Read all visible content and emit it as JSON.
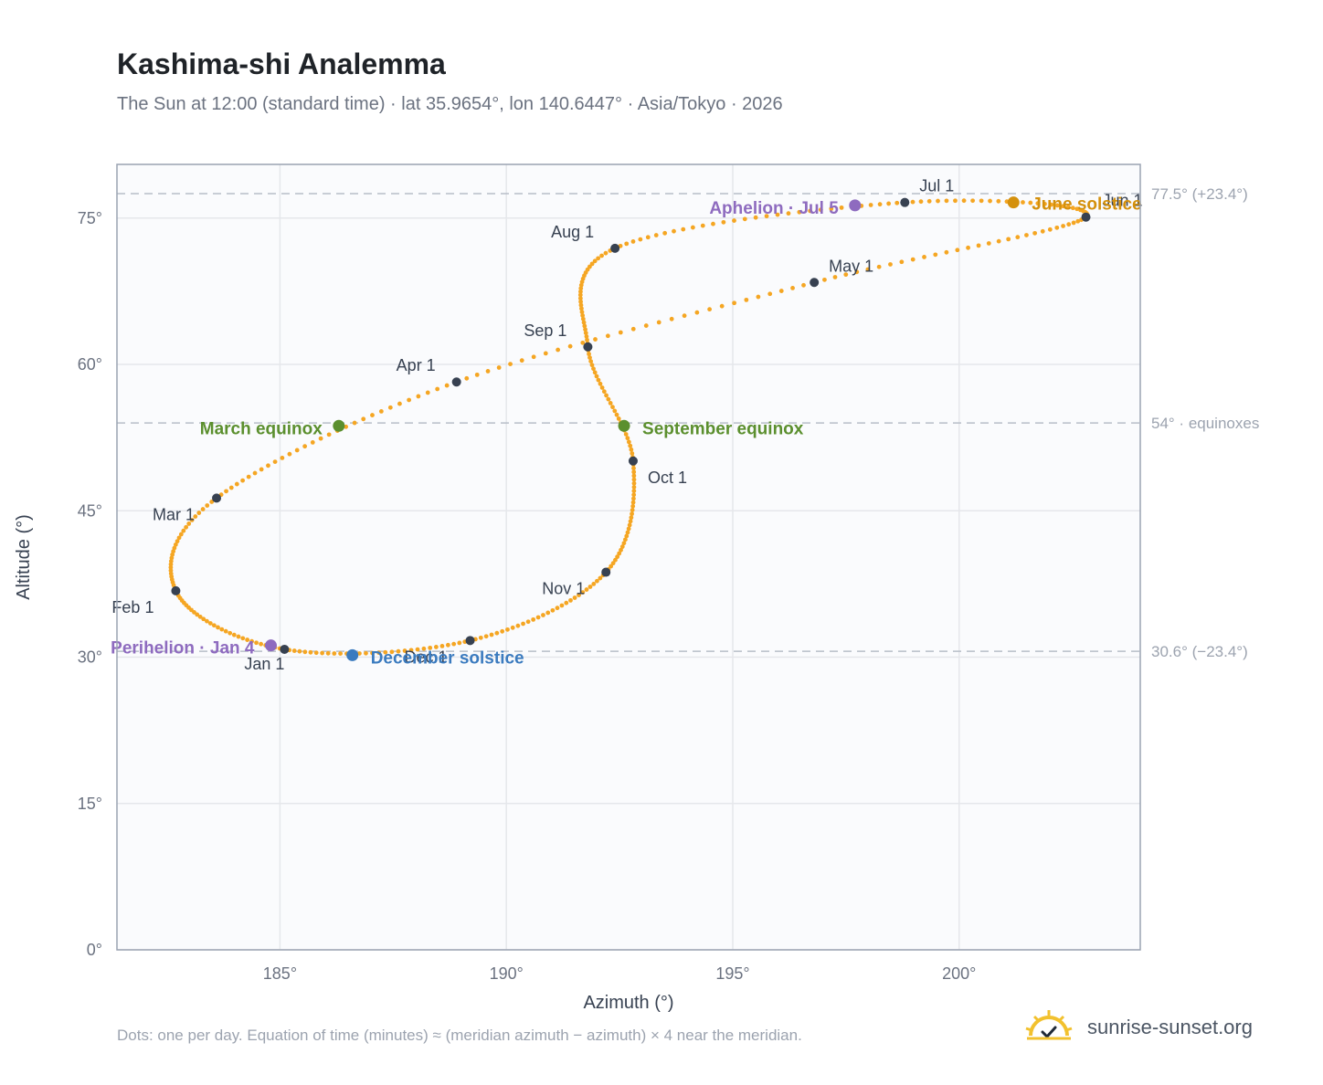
{
  "header": {
    "title": "Kashima-shi Analemma",
    "subtitle": "The Sun at 12:00 (standard time) · lat 35.9654°, lon 140.6447° · Asia/Tokyo · 2026"
  },
  "footer": {
    "note": "Dots: one per day. Equation of time (minutes) ≈ (meridian azimuth − azimuth) × 4 near the meridian.",
    "brand": "sunrise-sunset.org"
  },
  "colors": {
    "path": "#f5a623",
    "month_dot": "#374151",
    "equinox": "#5b8f2e",
    "june_solstice": "#d4900c",
    "december_solstice": "#3b7bbf",
    "apsis": "#8e6bbf",
    "grid": "#e5e7eb",
    "plot_bg": "#fafbfd",
    "frame": "#9aa3b2",
    "ref_line": "#b8bec8"
  },
  "chart_data": {
    "type": "scatter",
    "title": "Kashima-shi Analemma",
    "xlabel": "Azimuth (°)",
    "ylabel": "Altitude (°)",
    "xlim": [
      181.4,
      204.0
    ],
    "ylim": [
      0,
      80.5
    ],
    "x_ticks": [
      185,
      190,
      195,
      200
    ],
    "x_tick_labels": [
      "185°",
      "190°",
      "195°",
      "200°"
    ],
    "y_ticks": [
      0,
      15,
      30,
      45,
      60,
      75
    ],
    "y_tick_labels": [
      "0°",
      "15°",
      "30°",
      "45°",
      "60°",
      "75°"
    ],
    "grid": true,
    "reference_lines": [
      {
        "y": 77.5,
        "label": "77.5° (+23.4°)"
      },
      {
        "y": 54.0,
        "label": "54° · equinoxes"
      },
      {
        "y": 30.6,
        "label": "30.6° (−23.4°)"
      }
    ],
    "months": [
      {
        "label": "Jan 1",
        "day": 1,
        "az": 185.1,
        "alt": 30.8
      },
      {
        "label": "Feb 1",
        "day": 32,
        "az": 182.7,
        "alt": 36.8
      },
      {
        "label": "Mar 1",
        "day": 60,
        "az": 183.6,
        "alt": 46.3
      },
      {
        "label": "Apr 1",
        "day": 91,
        "az": 188.9,
        "alt": 58.2
      },
      {
        "label": "May 1",
        "day": 121,
        "az": 196.8,
        "alt": 68.4
      },
      {
        "label": "Jun 1",
        "day": 152,
        "az": 202.8,
        "alt": 75.1
      },
      {
        "label": "Jul 1",
        "day": 182,
        "az": 198.8,
        "alt": 76.6
      },
      {
        "label": "Aug 1",
        "day": 213,
        "az": 192.4,
        "alt": 71.9
      },
      {
        "label": "Sep 1",
        "day": 244,
        "az": 191.8,
        "alt": 61.8
      },
      {
        "label": "Oct 1",
        "day": 274,
        "az": 192.8,
        "alt": 50.1
      },
      {
        "label": "Nov 1",
        "day": 305,
        "az": 192.2,
        "alt": 38.7
      },
      {
        "label": "Dec 1",
        "day": 335,
        "az": 189.2,
        "alt": 31.7
      }
    ],
    "events": [
      {
        "label": "March equinox",
        "day": 79,
        "az": 186.3,
        "alt": 53.7,
        "color": "#5b8f2e"
      },
      {
        "label": "June solstice",
        "day": 172,
        "az": 201.2,
        "alt": 76.6,
        "color": "#d4900c"
      },
      {
        "label": "September equinox",
        "day": 265,
        "az": 192.6,
        "alt": 53.7,
        "color": "#5b8f2e"
      },
      {
        "label": "December solstice",
        "day": 355,
        "az": 186.6,
        "alt": 30.2,
        "color": "#3b7bbf"
      },
      {
        "label": "Perihelion · Jan 4",
        "day": 4,
        "az": 184.8,
        "alt": 31.2,
        "color": "#8e6bbf"
      },
      {
        "label": "Aphelion · Jul 5",
        "day": 186,
        "az": 197.7,
        "alt": 76.3,
        "color": "#8e6bbf"
      }
    ]
  }
}
